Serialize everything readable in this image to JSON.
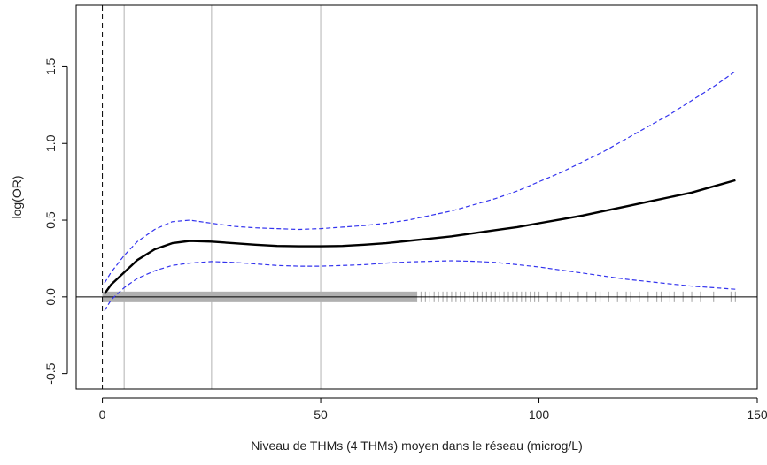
{
  "chart_data": {
    "type": "line",
    "title": "",
    "xlabel": "Niveau de THMs (4 THMs) moyen dans le réseau (microg/L)",
    "ylabel": "log(OR)",
    "xlim": [
      -6,
      150
    ],
    "ylim": [
      -0.6,
      1.9
    ],
    "x_ticks": [
      0,
      50,
      100,
      150
    ],
    "x_tick_labels": [
      "0",
      "50",
      "100",
      "150"
    ],
    "y_ticks": [
      -0.5,
      0.0,
      0.5,
      1.0,
      1.5
    ],
    "y_tick_labels": [
      "-0.5",
      "0.0",
      "0.5",
      "1.0",
      "1.5"
    ],
    "reference_hline_y": 0,
    "reference_vline_x": 0,
    "vertical_gridlines_x": [
      5,
      25,
      50
    ],
    "grid": false,
    "legend": "none",
    "colors": {
      "estimate": "#000000",
      "ci": "#3333ee",
      "rug": "#b0b0b0",
      "gridline": "#cccccc",
      "reference": "#000000"
    },
    "series": [
      {
        "role": "estimate",
        "x": [
          0.5,
          2,
          5,
          8,
          12,
          16,
          20,
          25,
          30,
          35,
          40,
          45,
          50,
          55,
          60,
          65,
          70,
          75,
          80,
          85,
          90,
          95,
          100,
          105,
          110,
          115,
          120,
          125,
          130,
          135,
          140,
          145
        ],
        "y": [
          0.02,
          0.08,
          0.16,
          0.24,
          0.31,
          0.35,
          0.365,
          0.36,
          0.35,
          0.34,
          0.332,
          0.33,
          0.33,
          0.332,
          0.34,
          0.35,
          0.365,
          0.38,
          0.395,
          0.415,
          0.435,
          0.455,
          0.48,
          0.505,
          0.53,
          0.56,
          0.59,
          0.62,
          0.65,
          0.68,
          0.72,
          0.76
        ]
      },
      {
        "role": "ci_upper",
        "x": [
          0.5,
          2,
          5,
          8,
          12,
          16,
          20,
          25,
          30,
          35,
          40,
          45,
          50,
          55,
          60,
          65,
          70,
          75,
          80,
          85,
          90,
          95,
          100,
          105,
          110,
          115,
          120,
          125,
          130,
          135,
          140,
          145
        ],
        "y": [
          0.09,
          0.16,
          0.27,
          0.36,
          0.44,
          0.49,
          0.5,
          0.48,
          0.46,
          0.45,
          0.445,
          0.44,
          0.445,
          0.455,
          0.465,
          0.48,
          0.5,
          0.53,
          0.56,
          0.6,
          0.64,
          0.69,
          0.75,
          0.81,
          0.88,
          0.95,
          1.03,
          1.11,
          1.19,
          1.28,
          1.37,
          1.47
        ]
      },
      {
        "role": "ci_lower",
        "x": [
          0.5,
          2,
          5,
          8,
          12,
          16,
          20,
          25,
          30,
          35,
          40,
          45,
          50,
          55,
          60,
          65,
          70,
          75,
          80,
          85,
          90,
          95,
          100,
          105,
          110,
          115,
          120,
          125,
          130,
          135,
          140,
          145
        ],
        "y": [
          -0.09,
          -0.02,
          0.06,
          0.12,
          0.17,
          0.205,
          0.22,
          0.23,
          0.225,
          0.215,
          0.205,
          0.2,
          0.2,
          0.205,
          0.21,
          0.22,
          0.228,
          0.232,
          0.235,
          0.232,
          0.225,
          0.21,
          0.195,
          0.175,
          0.155,
          0.135,
          0.115,
          0.1,
          0.085,
          0.07,
          0.06,
          0.05
        ]
      }
    ],
    "rug_x_dense_range": [
      0,
      72
    ],
    "rug_x_sparse": [
      72,
      73,
      74,
      75,
      76,
      77,
      78,
      79,
      80,
      81,
      82,
      83,
      84,
      85,
      86,
      87,
      88,
      89,
      90,
      91,
      92,
      93,
      94,
      95,
      96,
      97,
      98,
      99,
      100,
      102,
      104,
      105,
      107,
      109,
      111,
      113,
      114,
      116,
      118,
      120,
      121,
      123,
      125,
      127,
      128,
      130,
      131,
      133,
      135,
      137,
      140,
      144,
      145
    ]
  }
}
